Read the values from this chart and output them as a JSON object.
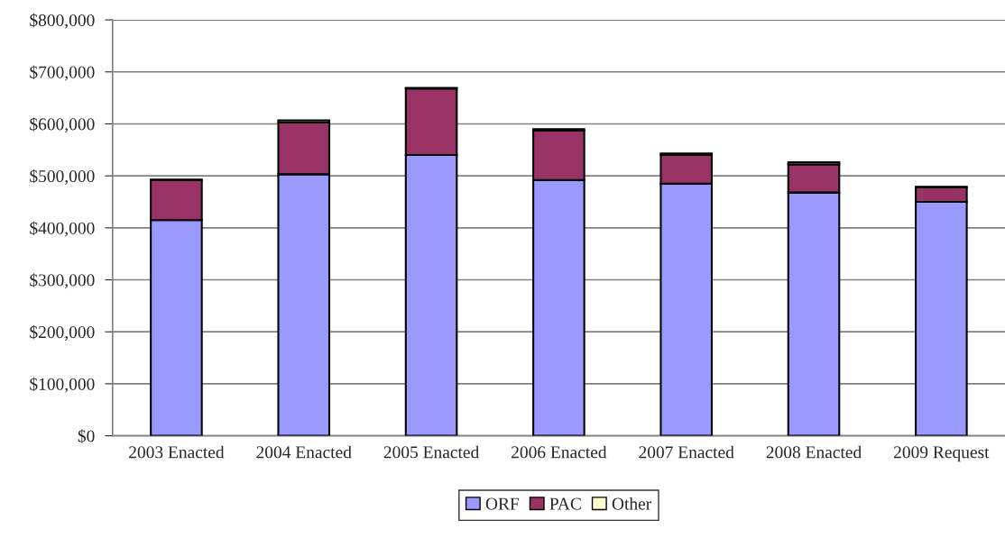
{
  "chart_data": {
    "type": "bar",
    "stacked": true,
    "categories": [
      "2003 Enacted",
      "2004 Enacted",
      "2005 Enacted",
      "2006 Enacted",
      "2007 Enacted",
      "2008 Enacted",
      "2009 Request"
    ],
    "series": [
      {
        "name": "ORF",
        "color": "#9999ff",
        "values": [
          415000,
          503000,
          540000,
          492000,
          485000,
          468000,
          450000
        ]
      },
      {
        "name": "PAC",
        "color": "#993366",
        "values": [
          77000,
          100000,
          128000,
          95000,
          55000,
          54000,
          28000
        ]
      },
      {
        "name": "Other",
        "color": "#ffffcc",
        "values": [
          1000,
          4000,
          1000,
          3000,
          3000,
          4000,
          1000
        ]
      }
    ],
    "ylim": [
      0,
      800000
    ],
    "yticks": [
      {
        "value": 0,
        "label": "$0"
      },
      {
        "value": 100000,
        "label": "$100,000"
      },
      {
        "value": 200000,
        "label": "$200,000"
      },
      {
        "value": 300000,
        "label": "$300,000"
      },
      {
        "value": 400000,
        "label": "$400,000"
      },
      {
        "value": 500000,
        "label": "$500,000"
      },
      {
        "value": 600000,
        "label": "$600,000"
      },
      {
        "value": 700000,
        "label": "$700,000"
      },
      {
        "value": 800000,
        "label": "$800,000"
      }
    ],
    "grid": "y",
    "legend": "bottom"
  }
}
